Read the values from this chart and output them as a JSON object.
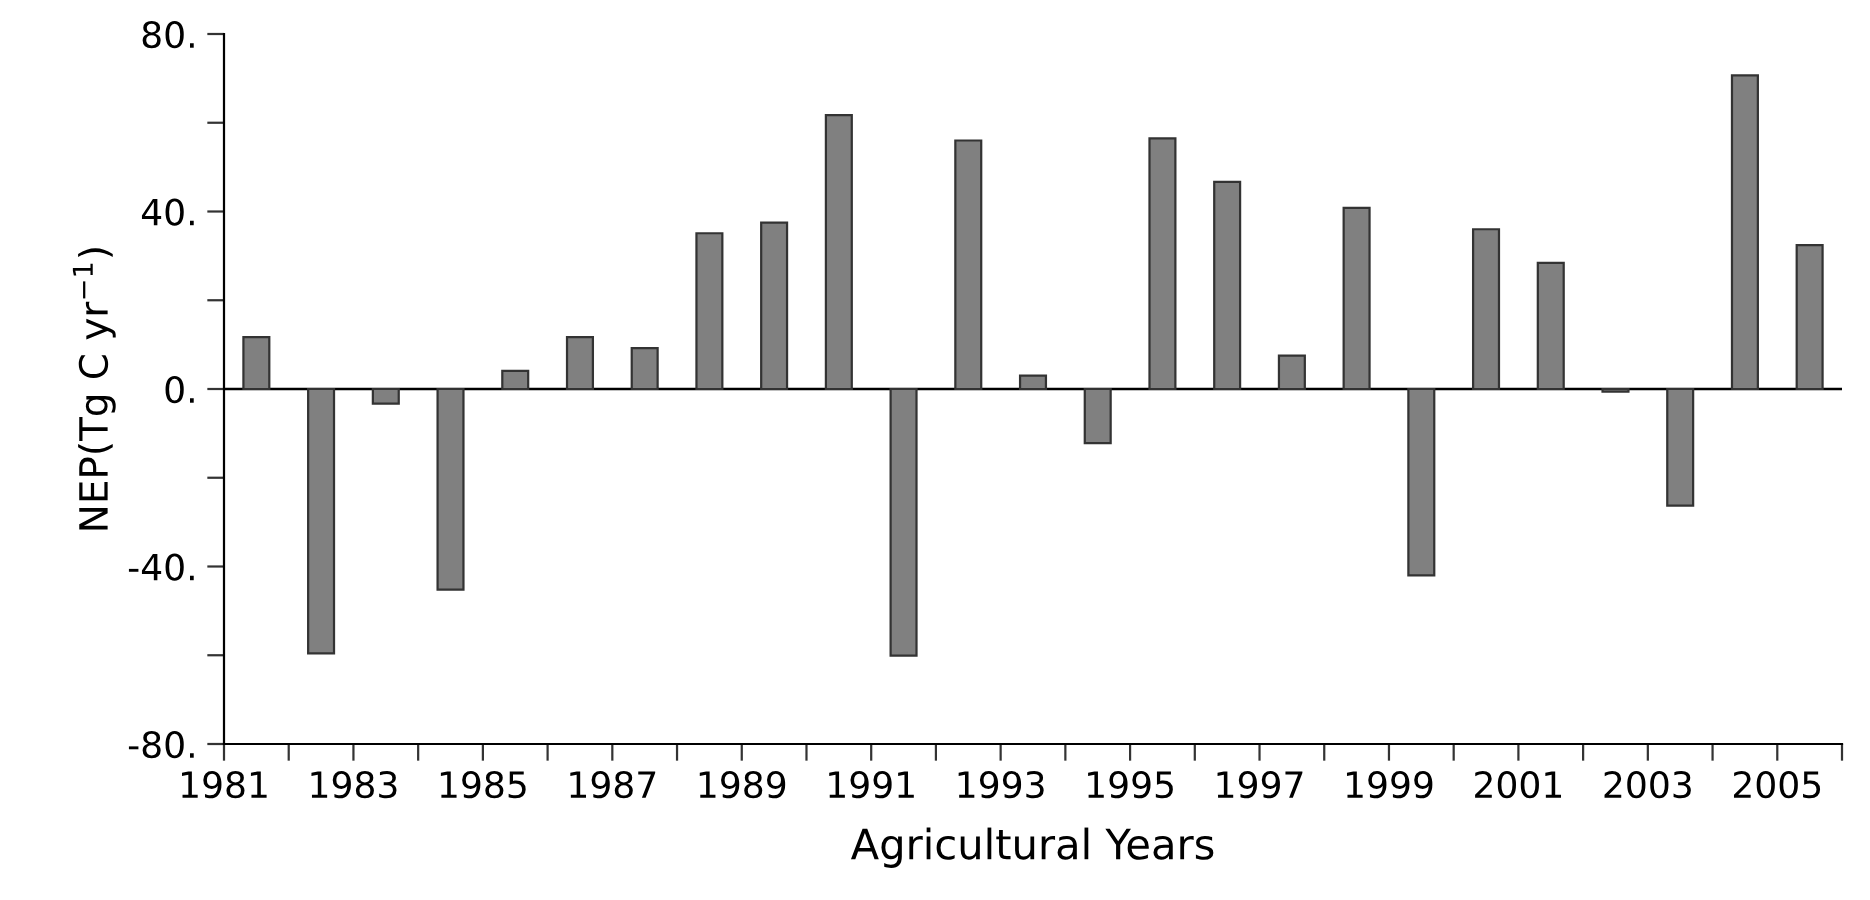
{
  "chart_data": {
    "type": "bar",
    "xlabel": "Agricultural Years",
    "ylabel": "NEP(Tg C yr$^{−1}$)",
    "x": [
      1981.5,
      1982.5,
      1983.5,
      1984.5,
      1985.5,
      1986.5,
      1987.5,
      1988.5,
      1989.5,
      1990.5,
      1991.5,
      1992.5,
      1993.5,
      1994.5,
      1995.5,
      1996.5,
      1997.5,
      1998.5,
      1999.5,
      2000.5,
      2001.5,
      2002.5,
      2003.5,
      2004.5,
      2005.5
    ],
    "values": [
      11.7,
      -59.6,
      -3.3,
      -45.2,
      4.1,
      11.7,
      9.2,
      35.1,
      37.5,
      61.7,
      -60.1,
      56.0,
      3.0,
      -12.2,
      56.5,
      46.7,
      7.5,
      40.8,
      -42.0,
      36.0,
      28.4,
      -0.6,
      -26.3,
      70.7,
      32.4
    ],
    "color": "#808080",
    "xlim": [
      1981,
      2006
    ],
    "xticks": [
      1981,
      {
        "value": 1982,
        "label": null
      },
      1983,
      {
        "value": 1984,
        "label": null
      },
      1985,
      {
        "value": 1986,
        "label": null
      },
      1987,
      {
        "value": 1988,
        "label": null
      },
      1989,
      {
        "value": 1990,
        "label": null
      },
      1991,
      {
        "value": 1992,
        "label": null
      },
      1993,
      {
        "value": 1994,
        "label": null
      },
      1995,
      {
        "value": 1996,
        "label": null
      },
      1997,
      {
        "value": 1998,
        "label": null
      },
      1999,
      {
        "value": 2000,
        "label": null
      },
      2001,
      {
        "value": 2002,
        "label": null
      },
      2003,
      {
        "value": 2004,
        "label": null
      },
      2005,
      {
        "value": 2006,
        "label": null
      }
    ],
    "ylim": [
      -80,
      80
    ],
    "yticks": [
      {
        "value": -80,
        "label": "-80."
      },
      {
        "value": -60,
        "label": null
      },
      {
        "value": -40,
        "label": "-40."
      },
      {
        "value": -20,
        "label": null
      },
      {
        "value": 0,
        "label": "0."
      },
      {
        "value": 20,
        "label": null
      },
      {
        "value": 40,
        "label": "40."
      },
      {
        "value": 60,
        "label": null
      },
      {
        "value": 80,
        "label": "80."
      }
    ],
    "ref_lines": [
      {
        "axis": "y",
        "value": 0,
        "color": "#000000"
      }
    ],
    "grid": false,
    "legend": false
  }
}
